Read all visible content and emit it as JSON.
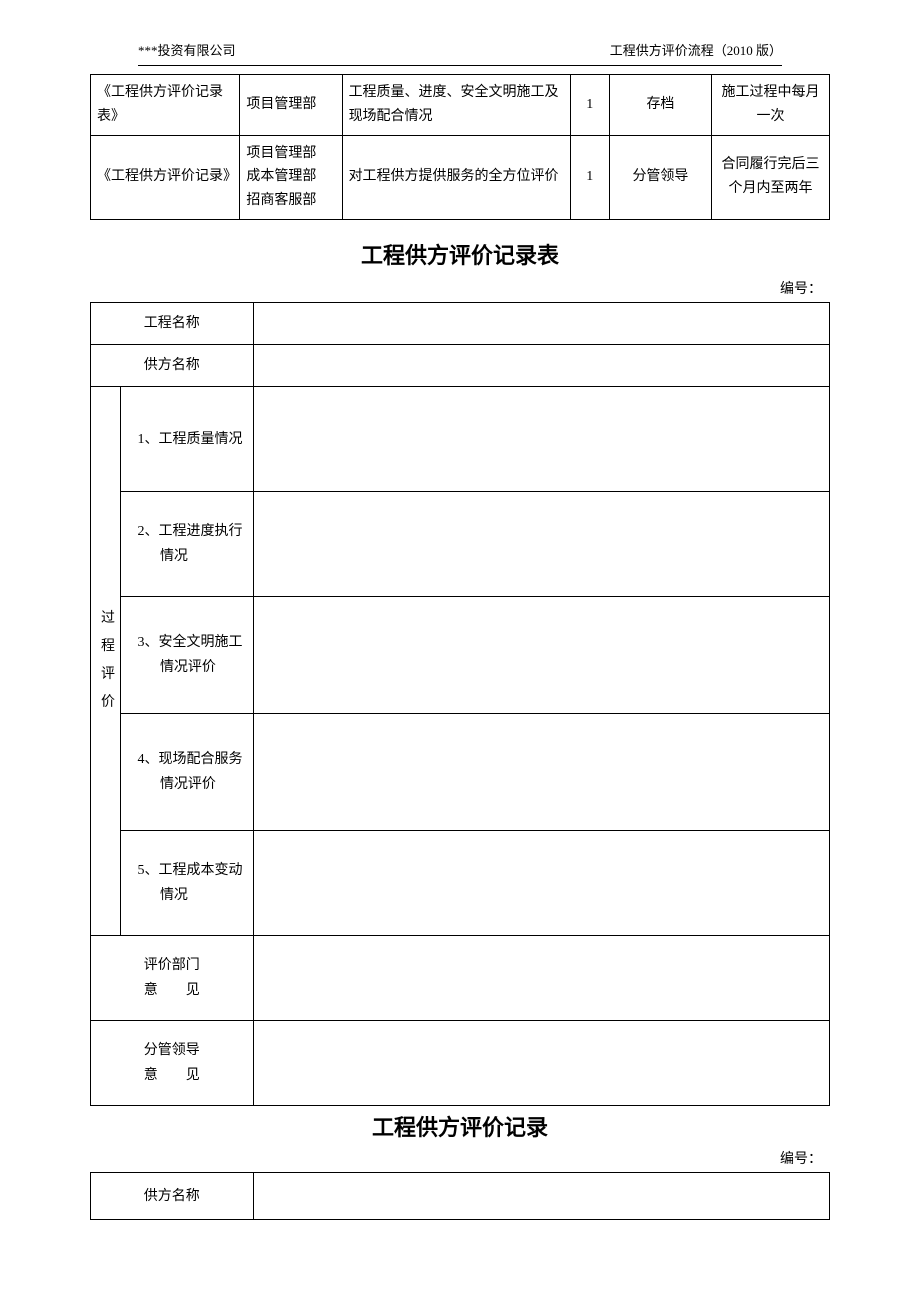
{
  "header": {
    "left": "***投资有限公司",
    "right": "工程供方评价流程（2010 版）"
  },
  "top_table": {
    "col_widths_pct": [
      19,
      13,
      27,
      5,
      13,
      15
    ],
    "rows": [
      {
        "c1": "《工程供方评价记录表》",
        "c2": "项目管理部",
        "c3": "工程质量、进度、安全文明施工及现场配合情况",
        "c4": "1",
        "c5": "存档",
        "c6": "施工过程中每月一次"
      },
      {
        "c1": "《工程供方评价记录》",
        "c2": "项目管理部\n成本管理部\n招商客服部",
        "c3": "对工程供方提供服务的全方位评价",
        "c4": "1",
        "c5": "分管领导",
        "c6": "合同履行完后三个月内至两年"
      }
    ]
  },
  "title1": "工程供方评价记录表",
  "serial_label": "编号：",
  "form1": {
    "col_widths_pct": [
      4,
      18,
      78
    ],
    "row1_label": "工程名称",
    "row2_label": "供方名称",
    "process_label": "过程评价",
    "process_label_chars": [
      "过",
      "程",
      "评",
      "价"
    ],
    "items": [
      "1、工程质量情况",
      "2、工程进度执行情况",
      "3、安全文明施工情况评价",
      "4、现场配合服务情况评价",
      "5、工程成本变动情况"
    ],
    "row_dept_label_line1": "评价部门",
    "row_dept_label_line2": "意　　见",
    "row_leader_label_line1": "分管领导",
    "row_leader_label_line2": "意　　见"
  },
  "title2": "工程供方评价记录",
  "form2": {
    "col_widths_pct": [
      22,
      78
    ],
    "row1_label": "供方名称"
  },
  "colors": {
    "text": "#000000",
    "border": "#000000",
    "bg": "#ffffff"
  }
}
